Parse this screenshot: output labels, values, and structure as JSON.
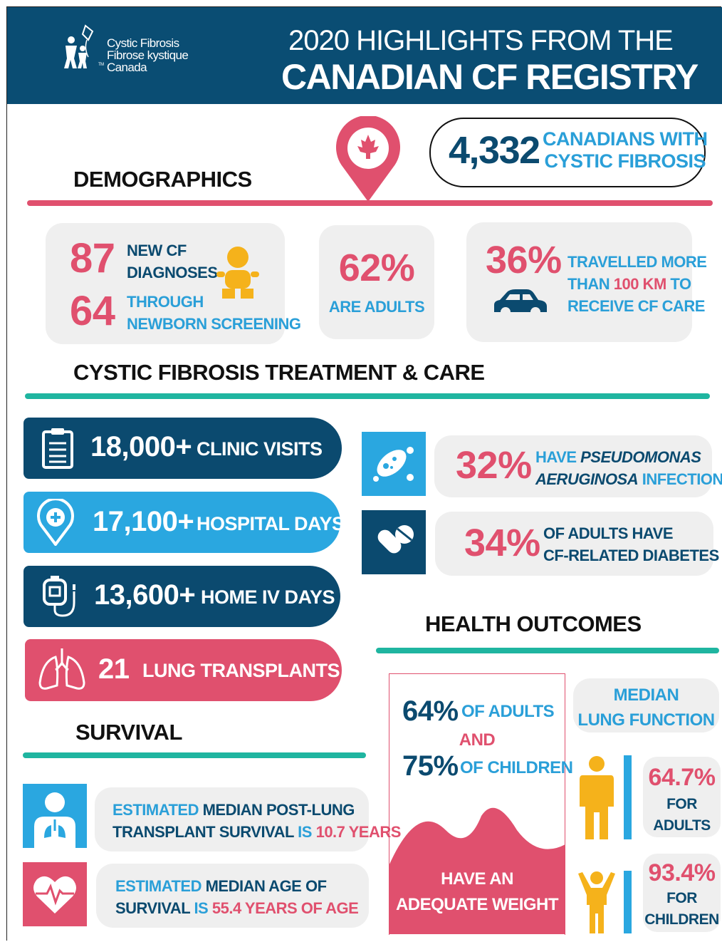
{
  "header": {
    "logo": [
      "Cystic Fibrosis",
      "Fibrose kystique",
      "Canada"
    ],
    "tm": "TM",
    "title_line1": "2020 HIGHLIGHTS FROM THE",
    "title_line2": "CANADIAN CF REGISTRY"
  },
  "demographics": {
    "heading": "DEMOGRAPHICS",
    "total": {
      "number": "4,332",
      "label": [
        "CANADIANS WITH",
        "CYSTIC FIBROSIS"
      ]
    },
    "new_diagnoses": {
      "number": "87",
      "label": [
        "NEW CF",
        "DIAGNOSES"
      ]
    },
    "newborn_screening": {
      "number": "64",
      "label": [
        "THROUGH",
        "NEWBORN SCREENING"
      ]
    },
    "adults": {
      "number": "62%",
      "label": "ARE ADULTS"
    },
    "travel": {
      "number": "36%",
      "label": [
        "TRAVELLED MORE",
        "THAN",
        "100 KM",
        "TO",
        "RECEIVE CF CARE"
      ]
    }
  },
  "treatment": {
    "heading": "CYSTIC FIBROSIS TREATMENT & CARE",
    "items": [
      {
        "number": "18,000+",
        "label": "CLINIC VISITS"
      },
      {
        "number": "17,100+",
        "label": "HOSPITAL DAYS"
      },
      {
        "number": "13,600+",
        "label": "HOME IV DAYS"
      },
      {
        "number": "21",
        "label": "LUNG TRANSPLANTS"
      }
    ],
    "pseudomonas": {
      "number": "32%",
      "label": [
        "HAVE",
        "PSEUDOMONAS",
        "AERUGINOSA",
        "INFECTIONS"
      ]
    },
    "diabetes": {
      "number": "34%",
      "label": [
        "OF ADULTS HAVE",
        "CF-RELATED DIABETES"
      ]
    }
  },
  "survival": {
    "heading": "SURVIVAL",
    "post_transplant": [
      "ESTIMATED",
      "MEDIAN POST-LUNG",
      "TRANSPLANT SURVIVAL",
      "IS",
      "10.7 YEARS"
    ],
    "median_age": [
      "ESTIMATED",
      "MEDIAN AGE OF",
      "SURVIVAL",
      "IS",
      "55.4 YEARS OF AGE"
    ]
  },
  "health_outcomes": {
    "heading": "HEALTH OUTCOMES",
    "weight": {
      "adults": "64%",
      "adults_label": "OF ADULTS",
      "and": "AND",
      "children": "75%",
      "children_label": "OF CHILDREN",
      "footer": [
        "HAVE AN",
        "ADEQUATE WEIGHT"
      ]
    },
    "lung_function": {
      "heading": [
        "MEDIAN",
        "LUNG FUNCTION"
      ],
      "adults": {
        "value": "64.7%",
        "label": [
          "FOR",
          "ADULTS"
        ]
      },
      "children": {
        "value": "93.4%",
        "label": [
          "FOR",
          "CHILDREN"
        ]
      }
    }
  }
}
